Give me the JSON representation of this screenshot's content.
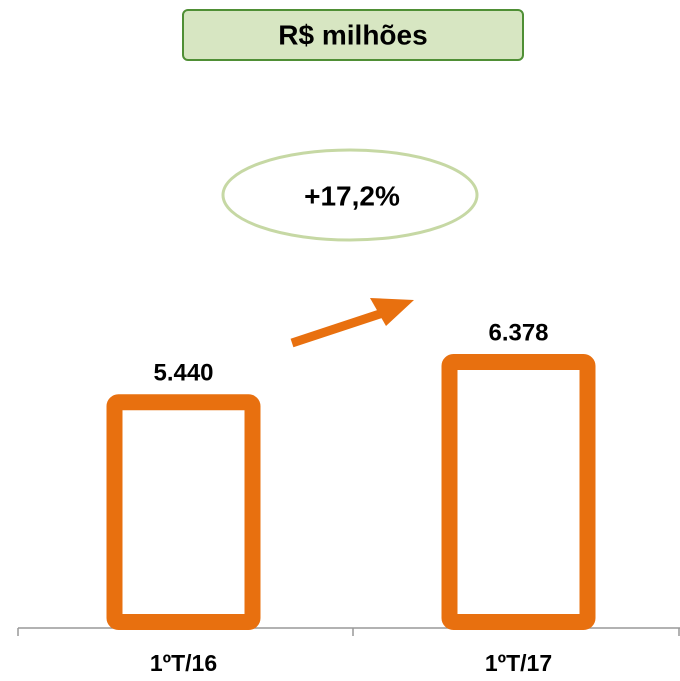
{
  "chart_data": {
    "type": "bar",
    "title": "R$ milhões",
    "categories": [
      "1ºT/16",
      "1ºT/17"
    ],
    "values": [
      5440,
      6378
    ],
    "value_labels": [
      "5.440",
      "6.378"
    ],
    "color": "#e8700f",
    "annotations": [
      "+17,2%"
    ]
  }
}
